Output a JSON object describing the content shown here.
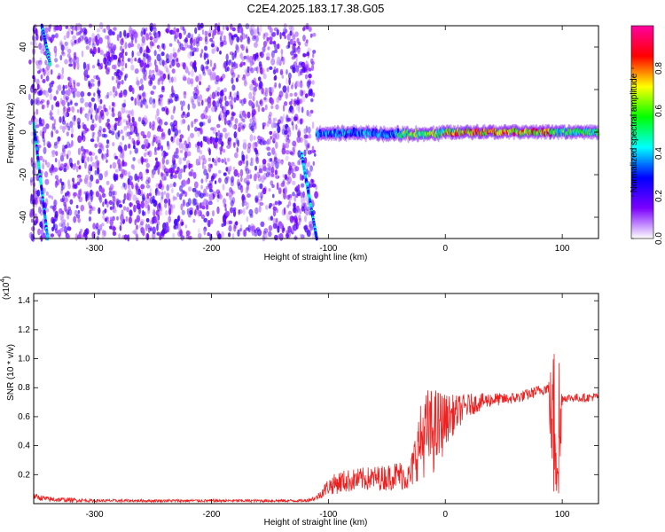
{
  "title": "C2E4.2025.183.17.38.G05",
  "chart_data": [
    {
      "type": "heatmap",
      "xlabel": "Height of straight line (km)",
      "ylabel": "Frequency (Hz)",
      "xlim": [
        -352,
        131
      ],
      "ylim": [
        -50,
        50
      ],
      "xticks": [
        -300,
        -200,
        -100,
        0,
        100
      ],
      "xtick_labels": [
        "-300",
        "-200",
        "-100",
        "0",
        "100"
      ],
      "yticks": [
        -40,
        -20,
        0,
        20,
        40
      ],
      "ytick_labels": [
        "-40",
        "-20",
        "0",
        "20",
        "40"
      ],
      "colorbar": {
        "label": "Normalized spectral amplitude",
        "range": [
          0,
          1
        ],
        "ticks": [
          0.0,
          0.2,
          0.4,
          0.6,
          0.8
        ],
        "tick_labels": [
          "0.0",
          "0.2",
          "0.4",
          "0.6",
          "0.8"
        ],
        "colors": [
          "#ffffff",
          "#7b00ff",
          "#0000ff",
          "#00ffff",
          "#00ff00",
          "#ffff00",
          "#ff0000",
          "#ff00a0"
        ]
      },
      "noise_region_x": [
        -352,
        -110
      ],
      "noise_amplitude": 0.2,
      "signal_line": {
        "frequency_hz": 0,
        "segments": [
          {
            "x_from": -110,
            "x_to": -40,
            "peak_amplitude": 0.45
          },
          {
            "x_from": -40,
            "x_to": 0,
            "peak_amplitude": 0.7
          },
          {
            "x_from": 0,
            "x_to": 90,
            "peak_amplitude": 0.9
          },
          {
            "x_from": 90,
            "x_to": 131,
            "peak_amplitude": 0.65
          }
        ]
      },
      "diagonal_tracks": [
        {
          "x1": -352,
          "y1": 4,
          "x2": -340,
          "y2": -50
        },
        {
          "x1": -345,
          "y1": 50,
          "x2": -338,
          "y2": 32
        },
        {
          "x1": -123,
          "y1": -10,
          "x2": -110,
          "y2": -50
        }
      ]
    },
    {
      "type": "line",
      "xlabel": "Height of straight line (km)",
      "ylabel": "SNR (10 * v/v)",
      "y_multiplier_label": "(x10",
      "y_multiplier_exp": "4",
      "xlim": [
        -352,
        131
      ],
      "ylim": [
        0,
        1.45
      ],
      "xticks": [
        -300,
        -200,
        -100,
        0,
        100
      ],
      "xtick_labels": [
        "-300",
        "-200",
        "-100",
        "0",
        "100"
      ],
      "yticks": [
        0.2,
        0.4,
        0.6,
        0.8,
        1.0,
        1.2,
        1.4
      ],
      "ytick_labels": [
        "0.2",
        "0.4",
        "0.6",
        "0.8",
        "1.0",
        "1.2",
        "1.4"
      ],
      "color": "#ee2020",
      "envelope": {
        "x": [
          -352,
          -340,
          -300,
          -250,
          -200,
          -150,
          -120,
          -110,
          -100,
          -90,
          -70,
          -50,
          -40,
          -30,
          -25,
          -20,
          -15,
          -10,
          -5,
          0,
          10,
          20,
          30,
          40,
          50,
          60,
          70,
          80,
          88,
          92,
          95,
          98,
          100,
          110,
          120,
          131
        ],
        "mean": [
          0.05,
          0.03,
          0.02,
          0.02,
          0.02,
          0.02,
          0.02,
          0.04,
          0.12,
          0.15,
          0.17,
          0.18,
          0.2,
          0.18,
          0.35,
          0.45,
          0.5,
          0.5,
          0.52,
          0.58,
          0.63,
          0.68,
          0.7,
          0.72,
          0.72,
          0.73,
          0.75,
          0.78,
          0.8,
          0.5,
          0.6,
          0.4,
          0.73,
          0.73,
          0.73,
          0.74
        ],
        "spread": [
          0.02,
          0.02,
          0.01,
          0.01,
          0.01,
          0.01,
          0.01,
          0.02,
          0.06,
          0.08,
          0.08,
          0.09,
          0.1,
          0.1,
          0.2,
          0.28,
          0.3,
          0.3,
          0.28,
          0.18,
          0.12,
          0.08,
          0.06,
          0.05,
          0.04,
          0.04,
          0.04,
          0.04,
          0.04,
          0.55,
          0.7,
          0.7,
          0.03,
          0.03,
          0.03,
          0.03
        ]
      }
    }
  ]
}
